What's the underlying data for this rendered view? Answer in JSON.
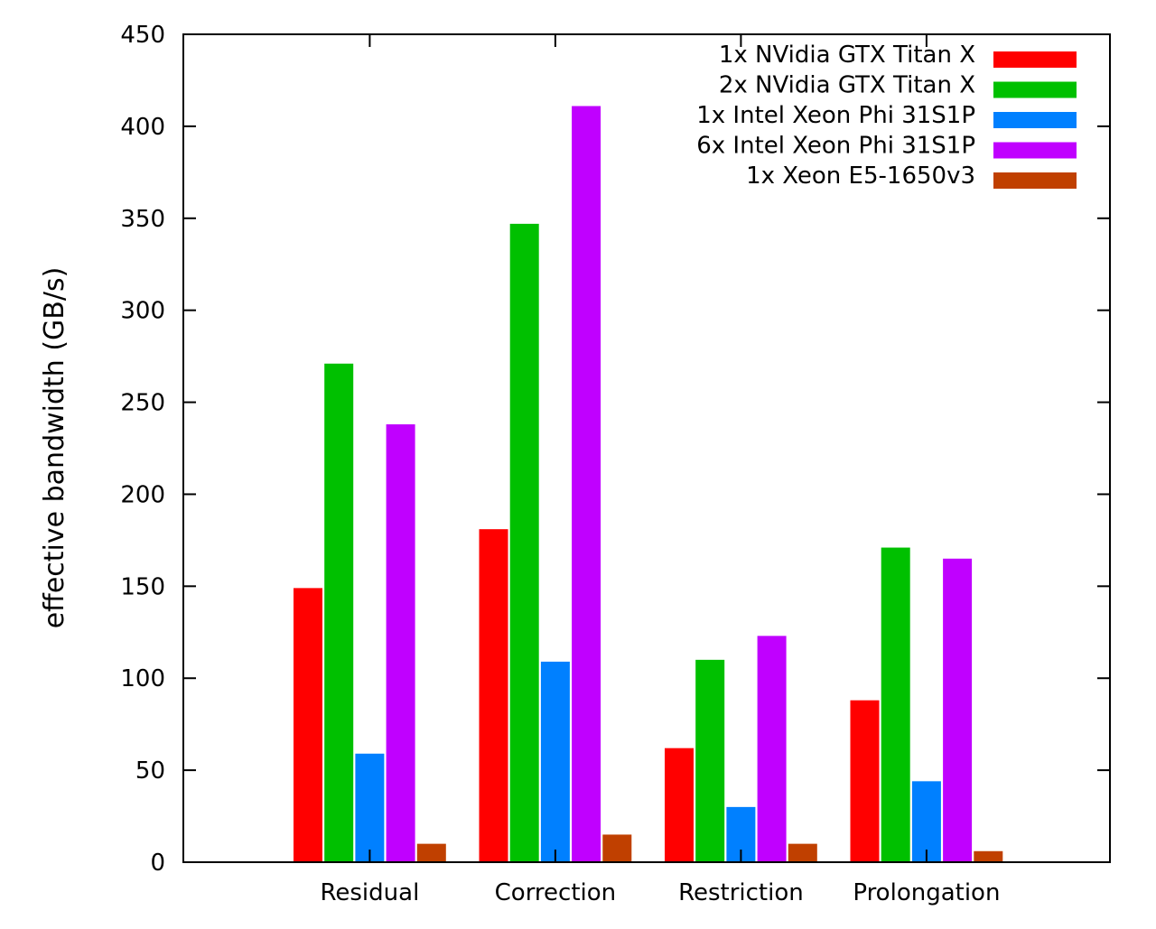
{
  "chart_data": {
    "type": "bar",
    "title": "",
    "xlabel": "",
    "ylabel": "effective bandwidth (GB/s)",
    "ylim": [
      0,
      450
    ],
    "yticks": [
      0,
      50,
      100,
      150,
      200,
      250,
      300,
      350,
      400,
      450
    ],
    "grid": false,
    "legend_position": "top-right",
    "categories": [
      "Residual",
      "Correction",
      "Restriction",
      "Prolongation"
    ],
    "series": [
      {
        "name": "1x NVidia GTX Titan X",
        "color": "#ff0000",
        "values": [
          149,
          181,
          62,
          88
        ]
      },
      {
        "name": "2x NVidia GTX Titan X",
        "color": "#00c000",
        "values": [
          271,
          347,
          110,
          171
        ]
      },
      {
        "name": "1x Intel Xeon Phi 31S1P",
        "color": "#0080ff",
        "values": [
          59,
          109,
          30,
          44
        ]
      },
      {
        "name": "6x Intel Xeon Phi 31S1P",
        "color": "#c000ff",
        "values": [
          238,
          411,
          123,
          165
        ]
      },
      {
        "name": "1x Xeon E5-1650v3",
        "color": "#c04000",
        "values": [
          10,
          15,
          10,
          6
        ]
      }
    ]
  }
}
